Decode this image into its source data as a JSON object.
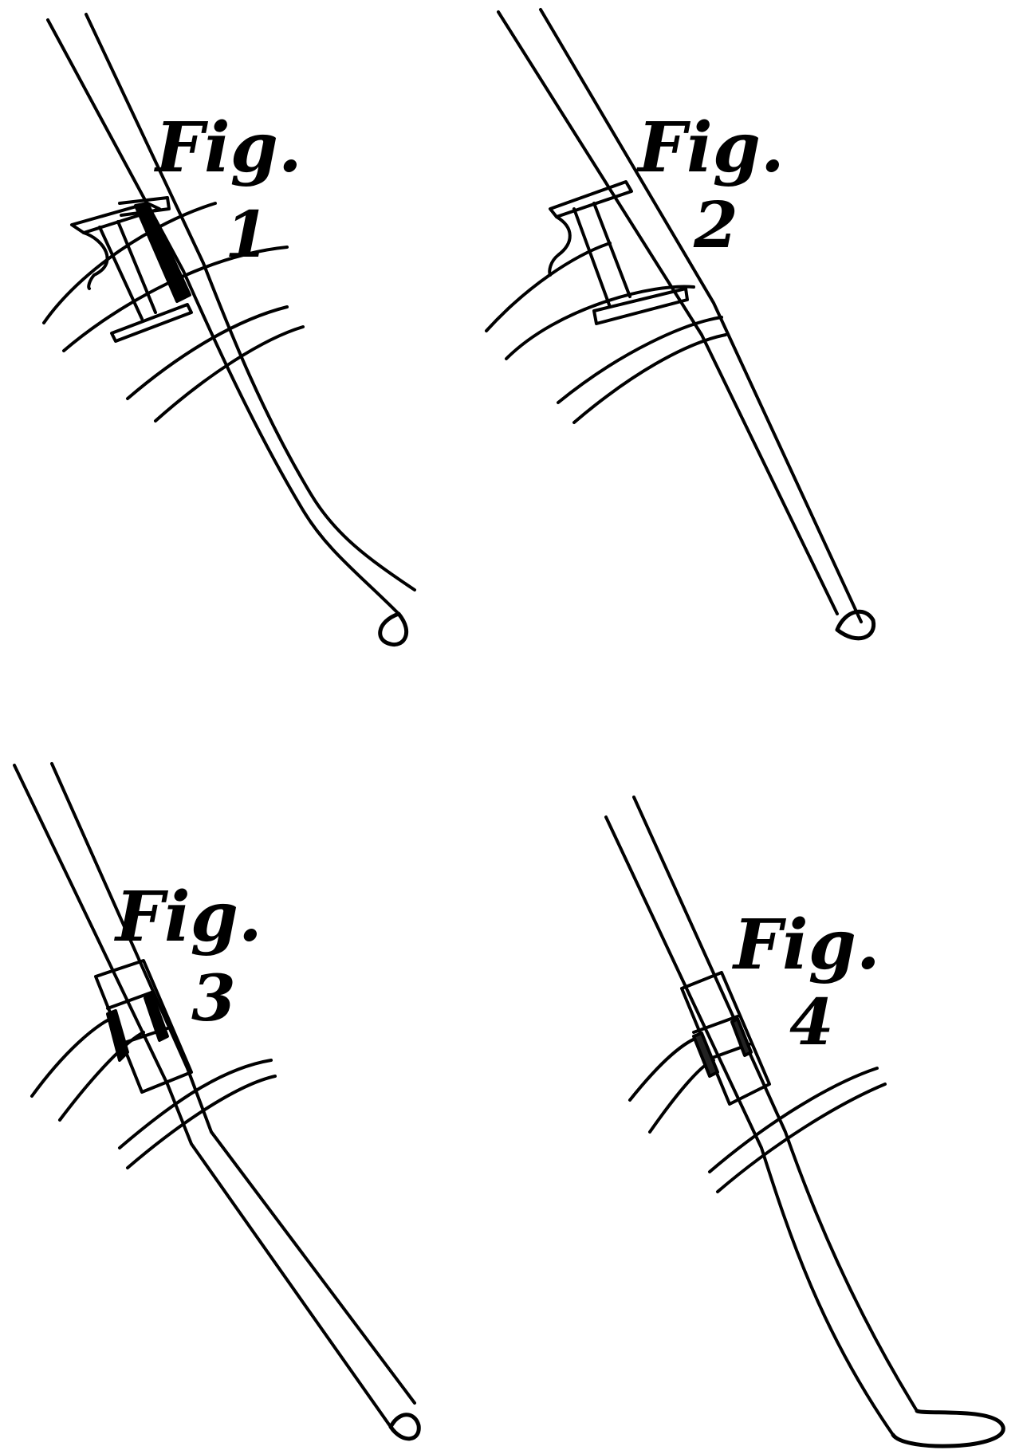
{
  "figures": [
    {
      "id": "fig1",
      "label_word": "Fig.",
      "label_number": "1"
    },
    {
      "id": "fig2",
      "label_word": "Fig.",
      "label_number": "2"
    },
    {
      "id": "fig3",
      "label_word": "Fig.",
      "label_number": "3"
    },
    {
      "id": "fig4",
      "label_word": "Fig.",
      "label_number": "4"
    }
  ],
  "colors": {
    "ink": "#000000",
    "paper": "#ffffff"
  }
}
